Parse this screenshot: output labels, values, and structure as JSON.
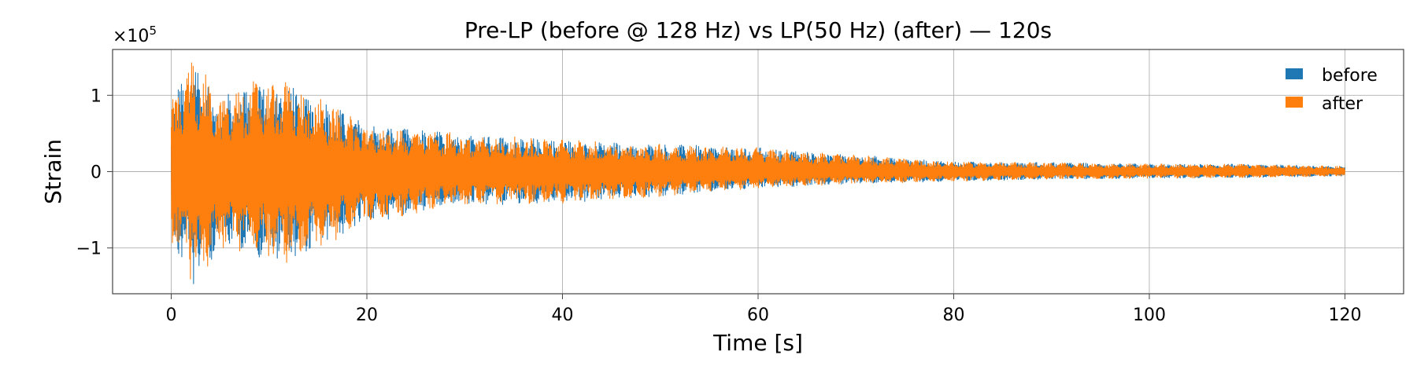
{
  "chart_data": {
    "type": "line",
    "title": "Pre-LP (before @ 128 Hz) vs LP(50 Hz) (after) — 120s",
    "xlabel": "Time [s]",
    "ylabel": "Strain",
    "y_scale_label": "×10",
    "y_scale_exponent": "5",
    "xlim": [
      -6,
      126
    ],
    "ylim": [
      -1.6,
      1.6
    ],
    "y_multiplier": 100000,
    "x_ticks": [
      0,
      20,
      40,
      60,
      80,
      100,
      120
    ],
    "x_tick_labels": [
      "0",
      "20",
      "40",
      "60",
      "80",
      "100",
      "120"
    ],
    "y_ticks": [
      -1,
      0,
      1
    ],
    "y_tick_labels": [
      "−1",
      "0",
      "1"
    ],
    "grid": true,
    "legend_position": "top-right",
    "series": [
      {
        "name": "before",
        "color": "#1f77b4",
        "x": [
          0,
          2.3,
          5,
          8,
          12,
          20,
          30,
          40,
          50,
          60,
          70,
          80,
          90,
          100,
          110,
          120
        ],
        "envelope_upper": [
          0.95,
          1.55,
          0.95,
          1.22,
          1.2,
          0.62,
          0.5,
          0.42,
          0.36,
          0.32,
          0.22,
          0.13,
          0.12,
          0.1,
          0.1,
          0.07
        ],
        "envelope_lower": [
          -0.95,
          -1.55,
          -1.0,
          -1.1,
          -1.22,
          -0.68,
          -0.45,
          -0.42,
          -0.33,
          -0.22,
          -0.16,
          -0.13,
          -0.1,
          -0.09,
          -0.08,
          -0.06
        ]
      },
      {
        "name": "after",
        "color": "#ff7f0e",
        "x": [
          0,
          2.3,
          5,
          8,
          12,
          20,
          30,
          40,
          50,
          60,
          70,
          80,
          90,
          100,
          110,
          120
        ],
        "envelope_upper": [
          0.95,
          1.55,
          0.95,
          1.22,
          1.2,
          0.62,
          0.5,
          0.42,
          0.36,
          0.32,
          0.22,
          0.13,
          0.12,
          0.1,
          0.1,
          0.07
        ],
        "envelope_lower": [
          -0.95,
          -1.55,
          -1.0,
          -1.1,
          -1.22,
          -0.68,
          -0.45,
          -0.42,
          -0.33,
          -0.22,
          -0.16,
          -0.13,
          -0.1,
          -0.09,
          -0.08,
          -0.06
        ]
      }
    ]
  }
}
